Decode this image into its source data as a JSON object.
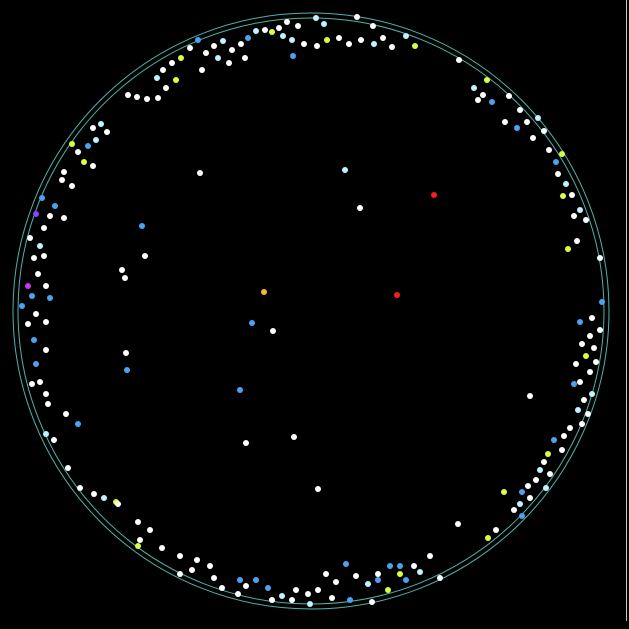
{
  "colors": {
    "background": "#000000",
    "ring": "#4fb3a9",
    "white": "#ffffff",
    "cyan": "#bff3ff",
    "blue": "#4aa3f0",
    "lime": "#d9ff3f",
    "purple": "#8844ff",
    "magenta": "#cc33ff",
    "red": "#ff1a1a",
    "gold": "#f5b82e"
  },
  "particles": [
    [
      357,
      17,
      "white"
    ],
    [
      373,
      26,
      "white"
    ],
    [
      316,
      18,
      "cyan"
    ],
    [
      324,
      24,
      "cyan"
    ],
    [
      298,
      26,
      "white"
    ],
    [
      287,
      22,
      "white"
    ],
    [
      279,
      28,
      "white"
    ],
    [
      272,
      32,
      "lime"
    ],
    [
      265,
      30,
      "white"
    ],
    [
      283,
      36,
      "cyan"
    ],
    [
      292,
      40,
      "cyan"
    ],
    [
      304,
      44,
      "white"
    ],
    [
      317,
      46,
      "white"
    ],
    [
      327,
      40,
      "lime"
    ],
    [
      339,
      38,
      "white"
    ],
    [
      349,
      44,
      "white"
    ],
    [
      361,
      40,
      "white"
    ],
    [
      374,
      44,
      "cyan"
    ],
    [
      383,
      38,
      "white"
    ],
    [
      392,
      47,
      "white"
    ],
    [
      406,
      36,
      "cyan"
    ],
    [
      415,
      46,
      "lime"
    ],
    [
      256,
      31,
      "cyan"
    ],
    [
      248,
      38,
      "blue"
    ],
    [
      241,
      44,
      "white"
    ],
    [
      232,
      50,
      "white"
    ],
    [
      223,
      41,
      "cyan"
    ],
    [
      214,
      46,
      "white"
    ],
    [
      206,
      53,
      "white"
    ],
    [
      198,
      40,
      "blue"
    ],
    [
      190,
      48,
      "white"
    ],
    [
      181,
      58,
      "lime"
    ],
    [
      172,
      63,
      "white"
    ],
    [
      163,
      70,
      "white"
    ],
    [
      157,
      78,
      "cyan"
    ],
    [
      166,
      88,
      "white"
    ],
    [
      176,
      80,
      "lime"
    ],
    [
      158,
      98,
      "white"
    ],
    [
      147,
      99,
      "white"
    ],
    [
      137,
      97,
      "white"
    ],
    [
      128,
      95,
      "white"
    ],
    [
      293,
      56,
      "blue"
    ],
    [
      245,
      58,
      "white"
    ],
    [
      218,
      58,
      "cyan"
    ],
    [
      229,
      63,
      "white"
    ],
    [
      202,
      70,
      "white"
    ],
    [
      459,
      60,
      "white"
    ],
    [
      487,
      80,
      "lime"
    ],
    [
      474,
      88,
      "cyan"
    ],
    [
      483,
      95,
      "white"
    ],
    [
      492,
      102,
      "blue"
    ],
    [
      478,
      100,
      "white"
    ],
    [
      509,
      96,
      "white"
    ],
    [
      520,
      110,
      "white"
    ],
    [
      527,
      122,
      "white"
    ],
    [
      517,
      128,
      "blue"
    ],
    [
      505,
      122,
      "white"
    ],
    [
      538,
      118,
      "cyan"
    ],
    [
      544,
      131,
      "white"
    ],
    [
      533,
      138,
      "white"
    ],
    [
      549,
      150,
      "white"
    ],
    [
      562,
      154,
      "lime"
    ],
    [
      556,
      162,
      "blue"
    ],
    [
      558,
      174,
      "white"
    ],
    [
      566,
      184,
      "cyan"
    ],
    [
      572,
      195,
      "white"
    ],
    [
      563,
      196,
      "lime"
    ],
    [
      580,
      210,
      "cyan"
    ],
    [
      574,
      216,
      "white"
    ],
    [
      586,
      220,
      "white"
    ],
    [
      568,
      249,
      "lime"
    ],
    [
      577,
      241,
      "white"
    ],
    [
      600,
      258,
      "white"
    ],
    [
      101,
      124,
      "cyan"
    ],
    [
      93,
      128,
      "white"
    ],
    [
      107,
      132,
      "white"
    ],
    [
      96,
      140,
      "cyan"
    ],
    [
      88,
      146,
      "blue"
    ],
    [
      78,
      152,
      "white"
    ],
    [
      84,
      162,
      "lime"
    ],
    [
      72,
      144,
      "lime"
    ],
    [
      93,
      166,
      "white"
    ],
    [
      64,
      172,
      "white"
    ],
    [
      72,
      186,
      "white"
    ],
    [
      62,
      180,
      "white"
    ],
    [
      42,
      198,
      "blue"
    ],
    [
      55,
      206,
      "blue"
    ],
    [
      64,
      218,
      "white"
    ],
    [
      50,
      216,
      "white"
    ],
    [
      36,
      214,
      "purple"
    ],
    [
      44,
      228,
      "white"
    ],
    [
      30,
      238,
      "white"
    ],
    [
      40,
      246,
      "cyan"
    ],
    [
      34,
      258,
      "white"
    ],
    [
      44,
      256,
      "white"
    ],
    [
      38,
      274,
      "white"
    ],
    [
      28,
      286,
      "magenta"
    ],
    [
      46,
      286,
      "white"
    ],
    [
      50,
      298,
      "blue"
    ],
    [
      32,
      296,
      "blue"
    ],
    [
      22,
      306,
      "blue"
    ],
    [
      36,
      314,
      "white"
    ],
    [
      46,
      322,
      "white"
    ],
    [
      28,
      324,
      "white"
    ],
    [
      34,
      340,
      "blue"
    ],
    [
      46,
      350,
      "white"
    ],
    [
      36,
      364,
      "blue"
    ],
    [
      40,
      382,
      "white"
    ],
    [
      32,
      384,
      "white"
    ],
    [
      46,
      394,
      "white"
    ],
    [
      48,
      404,
      "white"
    ],
    [
      66,
      414,
      "white"
    ],
    [
      78,
      424,
      "blue"
    ],
    [
      46,
      434,
      "cyan"
    ],
    [
      54,
      440,
      "white"
    ],
    [
      68,
      468,
      "white"
    ],
    [
      80,
      488,
      "white"
    ],
    [
      94,
      494,
      "white"
    ],
    [
      104,
      498,
      "cyan"
    ],
    [
      116,
      502,
      "lime"
    ],
    [
      118,
      504,
      "white"
    ],
    [
      138,
      522,
      "white"
    ],
    [
      150,
      530,
      "white"
    ],
    [
      140,
      540,
      "white"
    ],
    [
      138,
      546,
      "lime"
    ],
    [
      162,
      548,
      "white"
    ],
    [
      180,
      556,
      "white"
    ],
    [
      197,
      560,
      "white"
    ],
    [
      210,
      566,
      "white"
    ],
    [
      192,
      570,
      "white"
    ],
    [
      180,
      574,
      "white"
    ],
    [
      214,
      578,
      "white"
    ],
    [
      602,
      302,
      "blue"
    ],
    [
      592,
      318,
      "white"
    ],
    [
      580,
      322,
      "blue"
    ],
    [
      600,
      330,
      "white"
    ],
    [
      590,
      336,
      "white"
    ],
    [
      582,
      344,
      "white"
    ],
    [
      594,
      348,
      "white"
    ],
    [
      586,
      356,
      "lime"
    ],
    [
      596,
      362,
      "white"
    ],
    [
      576,
      364,
      "white"
    ],
    [
      590,
      372,
      "white"
    ],
    [
      580,
      382,
      "white"
    ],
    [
      574,
      384,
      "blue"
    ],
    [
      592,
      394,
      "cyan"
    ],
    [
      584,
      400,
      "white"
    ],
    [
      578,
      410,
      "cyan"
    ],
    [
      588,
      414,
      "white"
    ],
    [
      582,
      424,
      "white"
    ],
    [
      570,
      428,
      "white"
    ],
    [
      564,
      436,
      "white"
    ],
    [
      554,
      440,
      "blue"
    ],
    [
      562,
      450,
      "white"
    ],
    [
      548,
      454,
      "lime"
    ],
    [
      544,
      462,
      "white"
    ],
    [
      540,
      470,
      "cyan"
    ],
    [
      550,
      474,
      "white"
    ],
    [
      536,
      480,
      "white"
    ],
    [
      546,
      488,
      "cyan"
    ],
    [
      528,
      486,
      "white"
    ],
    [
      522,
      492,
      "blue"
    ],
    [
      530,
      498,
      "white"
    ],
    [
      520,
      504,
      "cyan"
    ],
    [
      514,
      510,
      "white"
    ],
    [
      522,
      516,
      "blue"
    ],
    [
      504,
      492,
      "lime"
    ],
    [
      530,
      396,
      "white"
    ],
    [
      488,
      538,
      "lime"
    ],
    [
      458,
      524,
      "white"
    ],
    [
      496,
      530,
      "white"
    ],
    [
      430,
      556,
      "white"
    ],
    [
      414,
      566,
      "white"
    ],
    [
      400,
      574,
      "lime"
    ],
    [
      390,
      566,
      "blue"
    ],
    [
      378,
      574,
      "white"
    ],
    [
      368,
      584,
      "cyan"
    ],
    [
      356,
      576,
      "white"
    ],
    [
      346,
      564,
      "blue"
    ],
    [
      336,
      582,
      "white"
    ],
    [
      326,
      574,
      "white"
    ],
    [
      318,
      590,
      "white"
    ],
    [
      308,
      594,
      "white"
    ],
    [
      296,
      590,
      "white"
    ],
    [
      282,
      596,
      "cyan"
    ],
    [
      268,
      588,
      "blue"
    ],
    [
      256,
      580,
      "blue"
    ],
    [
      246,
      586,
      "white"
    ],
    [
      238,
      594,
      "white"
    ],
    [
      292,
      600,
      "white"
    ],
    [
      310,
      604,
      "cyan"
    ],
    [
      332,
      598,
      "white"
    ],
    [
      350,
      600,
      "blue"
    ],
    [
      372,
      602,
      "white"
    ],
    [
      388,
      590,
      "lime"
    ],
    [
      406,
      580,
      "blue"
    ],
    [
      420,
      572,
      "cyan"
    ],
    [
      440,
      578,
      "white"
    ],
    [
      400,
      566,
      "blue"
    ],
    [
      378,
      580,
      "blue"
    ],
    [
      222,
      588,
      "white"
    ],
    [
      240,
      580,
      "blue"
    ],
    [
      272,
      600,
      "white"
    ],
    [
      434,
      195,
      "red"
    ],
    [
      397,
      295,
      "red"
    ],
    [
      264,
      292,
      "gold"
    ],
    [
      345,
      170,
      "cyan"
    ],
    [
      360,
      208,
      "white"
    ],
    [
      200,
      173,
      "white"
    ],
    [
      142,
      226,
      "blue"
    ],
    [
      145,
      256,
      "white"
    ],
    [
      122,
      270,
      "white"
    ],
    [
      125,
      278,
      "white"
    ],
    [
      252,
      323,
      "blue"
    ],
    [
      273,
      331,
      "white"
    ],
    [
      126,
      353,
      "white"
    ],
    [
      127,
      370,
      "blue"
    ],
    [
      240,
      390,
      "blue"
    ],
    [
      294,
      437,
      "white"
    ],
    [
      246,
      443,
      "white"
    ],
    [
      318,
      489,
      "white"
    ]
  ]
}
